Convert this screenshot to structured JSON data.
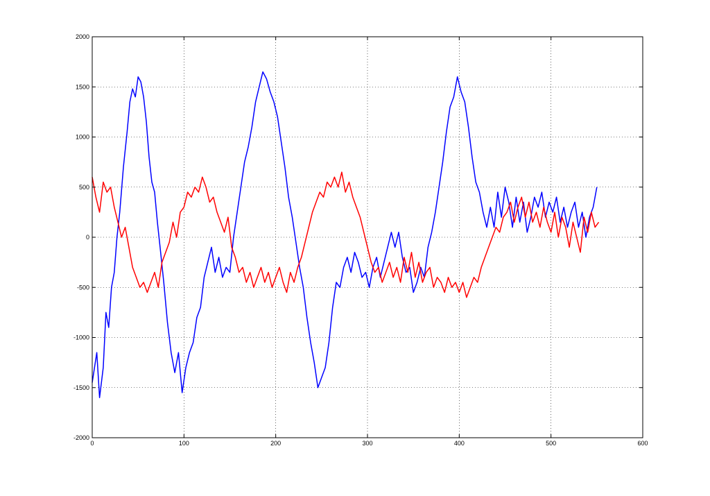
{
  "chart_data": {
    "type": "line",
    "title": "",
    "xlabel": "",
    "ylabel": "",
    "xlim": [
      0,
      600
    ],
    "ylim": [
      -2000,
      2000
    ],
    "xticks": [
      0,
      100,
      200,
      300,
      400,
      500,
      600
    ],
    "yticks": [
      -2000,
      -1500,
      -1000,
      -500,
      0,
      500,
      1000,
      1500,
      2000
    ],
    "grid": true,
    "legend": "none",
    "series": [
      {
        "color": "#0000ff",
        "points": [
          [
            0,
            -1450
          ],
          [
            5,
            -1150
          ],
          [
            8,
            -1600
          ],
          [
            12,
            -1300
          ],
          [
            15,
            -750
          ],
          [
            18,
            -900
          ],
          [
            21,
            -500
          ],
          [
            24,
            -350
          ],
          [
            27,
            0
          ],
          [
            30,
            250
          ],
          [
            34,
            700
          ],
          [
            38,
            1050
          ],
          [
            41,
            1350
          ],
          [
            44,
            1480
          ],
          [
            47,
            1400
          ],
          [
            50,
            1600
          ],
          [
            53,
            1550
          ],
          [
            56,
            1400
          ],
          [
            59,
            1150
          ],
          [
            62,
            800
          ],
          [
            65,
            550
          ],
          [
            68,
            450
          ],
          [
            71,
            150
          ],
          [
            74,
            -100
          ],
          [
            78,
            -450
          ],
          [
            82,
            -850
          ],
          [
            86,
            -1150
          ],
          [
            90,
            -1350
          ],
          [
            94,
            -1150
          ],
          [
            98,
            -1550
          ],
          [
            102,
            -1300
          ],
          [
            106,
            -1150
          ],
          [
            110,
            -1050
          ],
          [
            114,
            -800
          ],
          [
            118,
            -700
          ],
          [
            122,
            -400
          ],
          [
            126,
            -250
          ],
          [
            130,
            -100
          ],
          [
            134,
            -350
          ],
          [
            138,
            -200
          ],
          [
            142,
            -400
          ],
          [
            146,
            -300
          ],
          [
            150,
            -350
          ],
          [
            154,
            0
          ],
          [
            158,
            250
          ],
          [
            162,
            500
          ],
          [
            166,
            750
          ],
          [
            170,
            900
          ],
          [
            174,
            1100
          ],
          [
            178,
            1350
          ],
          [
            182,
            1500
          ],
          [
            186,
            1650
          ],
          [
            190,
            1580
          ],
          [
            194,
            1450
          ],
          [
            198,
            1350
          ],
          [
            202,
            1200
          ],
          [
            206,
            950
          ],
          [
            210,
            700
          ],
          [
            214,
            400
          ],
          [
            218,
            200
          ],
          [
            222,
            -50
          ],
          [
            226,
            -300
          ],
          [
            230,
            -500
          ],
          [
            234,
            -800
          ],
          [
            238,
            -1050
          ],
          [
            242,
            -1250
          ],
          [
            246,
            -1500
          ],
          [
            250,
            -1400
          ],
          [
            254,
            -1300
          ],
          [
            258,
            -1050
          ],
          [
            262,
            -700
          ],
          [
            266,
            -450
          ],
          [
            270,
            -500
          ],
          [
            274,
            -300
          ],
          [
            278,
            -200
          ],
          [
            282,
            -350
          ],
          [
            286,
            -150
          ],
          [
            290,
            -250
          ],
          [
            294,
            -400
          ],
          [
            298,
            -350
          ],
          [
            302,
            -500
          ],
          [
            306,
            -300
          ],
          [
            310,
            -200
          ],
          [
            314,
            -400
          ],
          [
            318,
            -250
          ],
          [
            322,
            -100
          ],
          [
            326,
            50
          ],
          [
            330,
            -100
          ],
          [
            334,
            50
          ],
          [
            338,
            -200
          ],
          [
            342,
            -350
          ],
          [
            346,
            -300
          ],
          [
            350,
            -550
          ],
          [
            354,
            -450
          ],
          [
            358,
            -300
          ],
          [
            362,
            -400
          ],
          [
            366,
            -100
          ],
          [
            370,
            50
          ],
          [
            374,
            250
          ],
          [
            378,
            500
          ],
          [
            382,
            750
          ],
          [
            386,
            1050
          ],
          [
            390,
            1300
          ],
          [
            394,
            1400
          ],
          [
            398,
            1600
          ],
          [
            402,
            1450
          ],
          [
            406,
            1350
          ],
          [
            410,
            1100
          ],
          [
            414,
            800
          ],
          [
            418,
            550
          ],
          [
            422,
            450
          ],
          [
            426,
            250
          ],
          [
            430,
            100
          ],
          [
            434,
            300
          ],
          [
            438,
            100
          ],
          [
            442,
            450
          ],
          [
            446,
            200
          ],
          [
            450,
            500
          ],
          [
            454,
            350
          ],
          [
            458,
            100
          ],
          [
            462,
            400
          ],
          [
            466,
            150
          ],
          [
            470,
            350
          ],
          [
            474,
            50
          ],
          [
            478,
            200
          ],
          [
            482,
            400
          ],
          [
            486,
            300
          ],
          [
            490,
            450
          ],
          [
            494,
            200
          ],
          [
            498,
            350
          ],
          [
            502,
            250
          ],
          [
            506,
            400
          ],
          [
            510,
            150
          ],
          [
            514,
            300
          ],
          [
            518,
            100
          ],
          [
            522,
            250
          ],
          [
            526,
            350
          ],
          [
            530,
            100
          ],
          [
            534,
            250
          ],
          [
            538,
            0
          ],
          [
            542,
            200
          ],
          [
            546,
            300
          ],
          [
            550,
            500
          ]
        ]
      },
      {
        "color": "#ff0000",
        "points": [
          [
            0,
            600
          ],
          [
            4,
            400
          ],
          [
            8,
            250
          ],
          [
            12,
            550
          ],
          [
            16,
            450
          ],
          [
            20,
            500
          ],
          [
            24,
            300
          ],
          [
            28,
            150
          ],
          [
            32,
            0
          ],
          [
            36,
            100
          ],
          [
            40,
            -100
          ],
          [
            44,
            -300
          ],
          [
            48,
            -400
          ],
          [
            52,
            -500
          ],
          [
            56,
            -450
          ],
          [
            60,
            -550
          ],
          [
            64,
            -450
          ],
          [
            68,
            -350
          ],
          [
            72,
            -500
          ],
          [
            76,
            -250
          ],
          [
            80,
            -150
          ],
          [
            84,
            -50
          ],
          [
            88,
            150
          ],
          [
            92,
            0
          ],
          [
            96,
            250
          ],
          [
            100,
            300
          ],
          [
            104,
            450
          ],
          [
            108,
            400
          ],
          [
            112,
            500
          ],
          [
            116,
            450
          ],
          [
            120,
            600
          ],
          [
            124,
            500
          ],
          [
            128,
            350
          ],
          [
            132,
            400
          ],
          [
            136,
            250
          ],
          [
            140,
            150
          ],
          [
            144,
            50
          ],
          [
            148,
            200
          ],
          [
            152,
            -100
          ],
          [
            156,
            -200
          ],
          [
            160,
            -350
          ],
          [
            164,
            -300
          ],
          [
            168,
            -450
          ],
          [
            172,
            -350
          ],
          [
            176,
            -500
          ],
          [
            180,
            -400
          ],
          [
            184,
            -300
          ],
          [
            188,
            -450
          ],
          [
            192,
            -350
          ],
          [
            196,
            -500
          ],
          [
            200,
            -400
          ],
          [
            204,
            -300
          ],
          [
            208,
            -450
          ],
          [
            212,
            -550
          ],
          [
            216,
            -350
          ],
          [
            220,
            -450
          ],
          [
            224,
            -300
          ],
          [
            228,
            -200
          ],
          [
            232,
            -50
          ],
          [
            236,
            100
          ],
          [
            240,
            250
          ],
          [
            244,
            350
          ],
          [
            248,
            450
          ],
          [
            252,
            400
          ],
          [
            256,
            550
          ],
          [
            260,
            500
          ],
          [
            264,
            600
          ],
          [
            268,
            500
          ],
          [
            272,
            650
          ],
          [
            276,
            450
          ],
          [
            280,
            550
          ],
          [
            284,
            400
          ],
          [
            288,
            300
          ],
          [
            292,
            200
          ],
          [
            296,
            50
          ],
          [
            300,
            -100
          ],
          [
            304,
            -250
          ],
          [
            308,
            -350
          ],
          [
            312,
            -300
          ],
          [
            316,
            -450
          ],
          [
            320,
            -350
          ],
          [
            324,
            -250
          ],
          [
            328,
            -400
          ],
          [
            332,
            -300
          ],
          [
            336,
            -450
          ],
          [
            340,
            -200
          ],
          [
            344,
            -350
          ],
          [
            348,
            -150
          ],
          [
            352,
            -400
          ],
          [
            356,
            -250
          ],
          [
            360,
            -450
          ],
          [
            364,
            -350
          ],
          [
            368,
            -300
          ],
          [
            372,
            -500
          ],
          [
            376,
            -400
          ],
          [
            380,
            -450
          ],
          [
            384,
            -550
          ],
          [
            388,
            -400
          ],
          [
            392,
            -500
          ],
          [
            396,
            -450
          ],
          [
            400,
            -550
          ],
          [
            404,
            -450
          ],
          [
            408,
            -600
          ],
          [
            412,
            -500
          ],
          [
            416,
            -400
          ],
          [
            420,
            -450
          ],
          [
            424,
            -300
          ],
          [
            428,
            -200
          ],
          [
            432,
            -100
          ],
          [
            436,
            0
          ],
          [
            440,
            100
          ],
          [
            444,
            50
          ],
          [
            448,
            200
          ],
          [
            452,
            250
          ],
          [
            456,
            350
          ],
          [
            460,
            150
          ],
          [
            464,
            300
          ],
          [
            468,
            400
          ],
          [
            472,
            200
          ],
          [
            476,
            350
          ],
          [
            480,
            150
          ],
          [
            484,
            250
          ],
          [
            488,
            100
          ],
          [
            492,
            300
          ],
          [
            496,
            150
          ],
          [
            500,
            50
          ],
          [
            504,
            250
          ],
          [
            508,
            0
          ],
          [
            512,
            200
          ],
          [
            516,
            100
          ],
          [
            520,
            -100
          ],
          [
            524,
            150
          ],
          [
            528,
            0
          ],
          [
            532,
            -150
          ],
          [
            536,
            200
          ],
          [
            540,
            50
          ],
          [
            544,
            250
          ],
          [
            548,
            100
          ],
          [
            552,
            150
          ]
        ]
      }
    ]
  }
}
